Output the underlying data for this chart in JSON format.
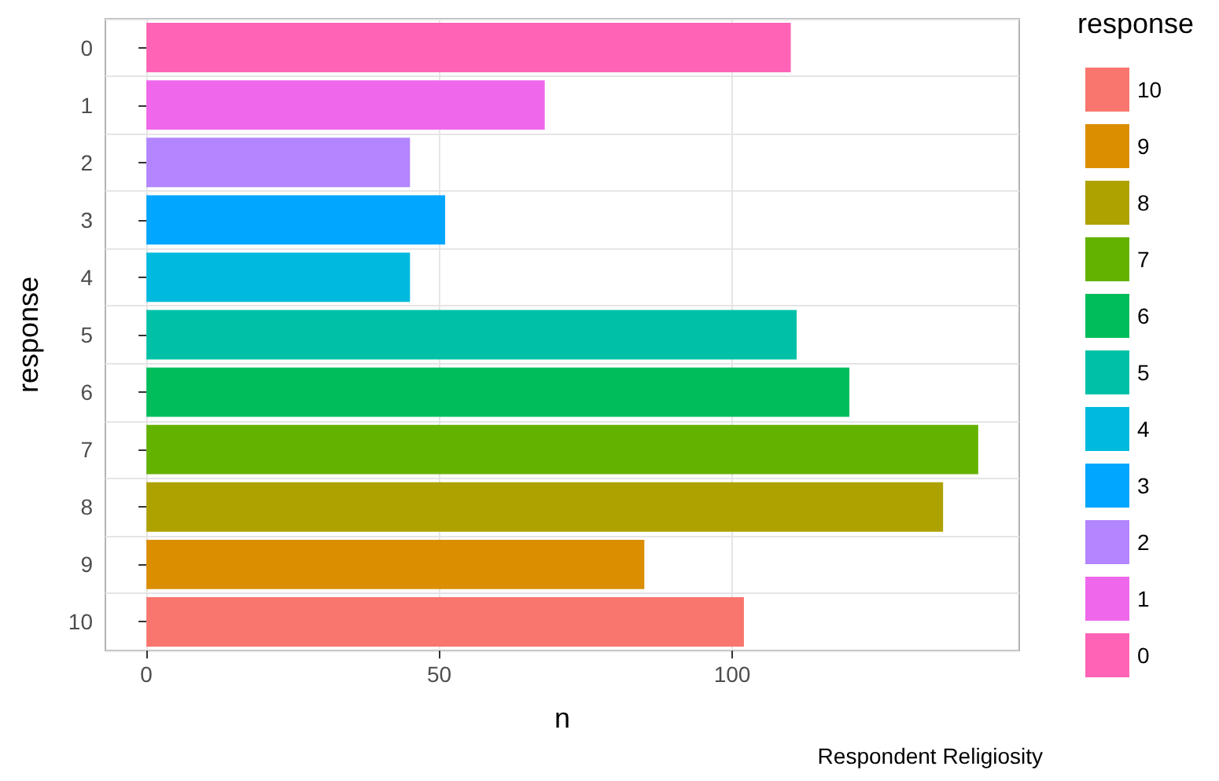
{
  "chart_data": {
    "type": "bar",
    "orientation": "horizontal",
    "xlabel": "n",
    "ylabel": "response",
    "legend_title": "response",
    "annotations": [
      "Respondent Religiosity"
    ],
    "categories": [
      "0",
      "1",
      "2",
      "3",
      "4",
      "5",
      "6",
      "7",
      "8",
      "9",
      "10"
    ],
    "series": [
      {
        "name": "10",
        "color": "#f8766d",
        "values": [
          null,
          null,
          null,
          null,
          null,
          null,
          null,
          null,
          null,
          null,
          102
        ]
      },
      {
        "name": "9",
        "color": "#db8e00",
        "values": [
          null,
          null,
          null,
          null,
          null,
          null,
          null,
          null,
          null,
          85,
          null
        ]
      },
      {
        "name": "8",
        "color": "#aea200",
        "values": [
          null,
          null,
          null,
          null,
          null,
          null,
          null,
          null,
          136,
          null,
          null
        ]
      },
      {
        "name": "7",
        "color": "#64b200",
        "values": [
          null,
          null,
          null,
          null,
          null,
          null,
          null,
          142,
          null,
          null,
          null
        ]
      },
      {
        "name": "6",
        "color": "#00bd5c",
        "values": [
          null,
          null,
          null,
          null,
          null,
          null,
          120,
          null,
          null,
          null,
          null
        ]
      },
      {
        "name": "5",
        "color": "#00c1a7",
        "values": [
          null,
          null,
          null,
          null,
          null,
          111,
          null,
          null,
          null,
          null,
          null
        ]
      },
      {
        "name": "4",
        "color": "#00bade",
        "values": [
          null,
          null,
          null,
          null,
          45,
          null,
          null,
          null,
          null,
          null,
          null
        ]
      },
      {
        "name": "3",
        "color": "#00a6ff",
        "values": [
          null,
          null,
          null,
          51,
          null,
          null,
          null,
          null,
          null,
          null,
          null
        ]
      },
      {
        "name": "2",
        "color": "#b385ff",
        "values": [
          null,
          null,
          45,
          null,
          null,
          null,
          null,
          null,
          null,
          null,
          null
        ]
      },
      {
        "name": "1",
        "color": "#ef67eb",
        "values": [
          null,
          68,
          null,
          null,
          null,
          null,
          null,
          null,
          null,
          null,
          null
        ]
      },
      {
        "name": "0",
        "color": "#ff63b6",
        "values": [
          110,
          null,
          null,
          null,
          null,
          null,
          null,
          null,
          null,
          null,
          null
        ]
      }
    ],
    "xlim": [
      -7,
      149
    ],
    "xticks": [
      0,
      50,
      100
    ],
    "grid": true,
    "legend": "right"
  }
}
